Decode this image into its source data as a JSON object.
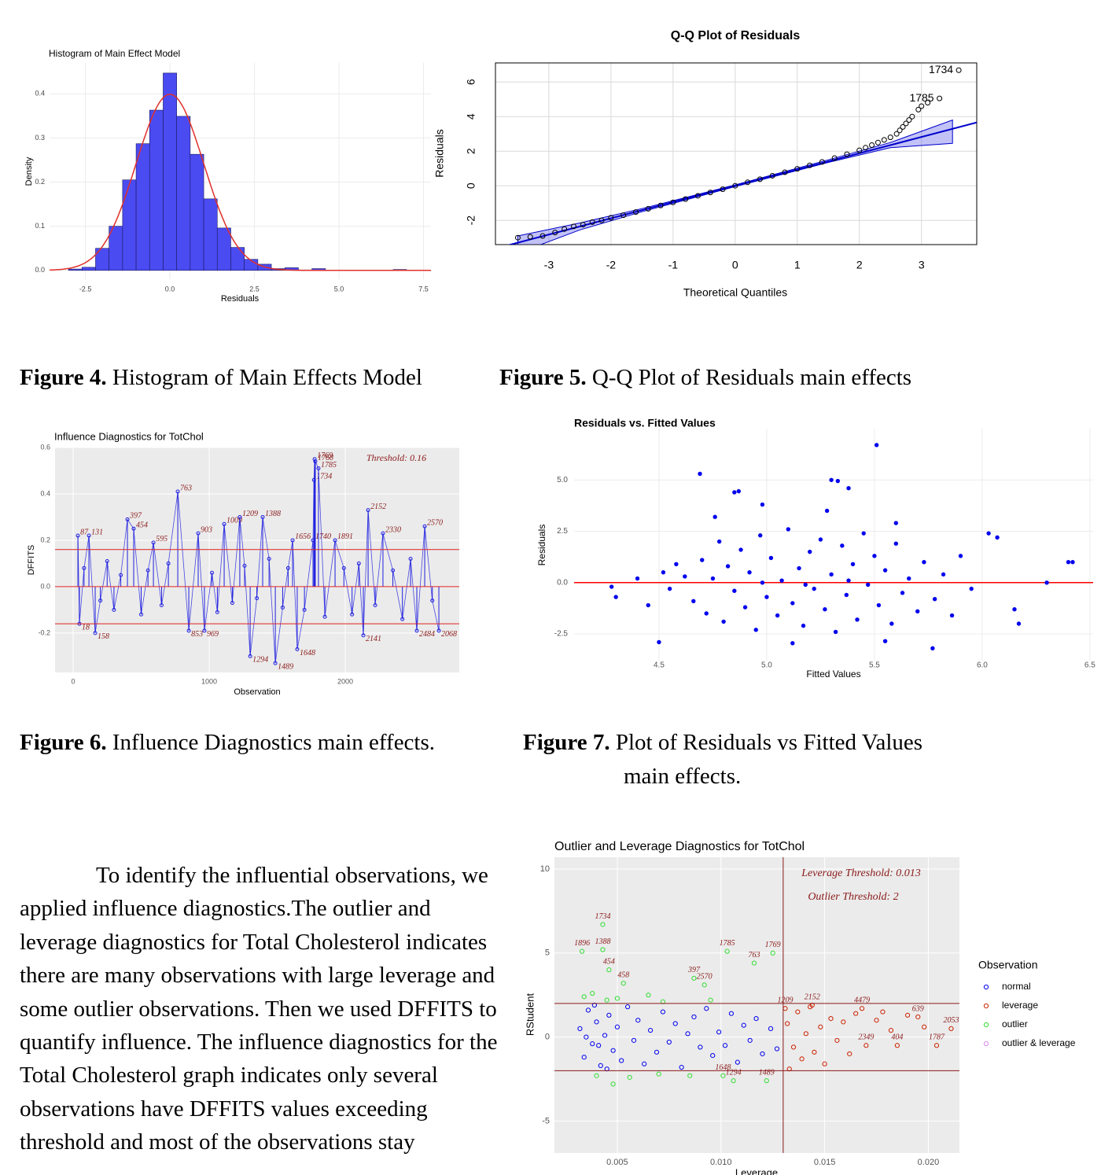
{
  "chart_data": [
    {
      "type": "histogram",
      "title": "Histogram of Main Effect Model",
      "x_label": "Residuals",
      "y_label": "Density",
      "bins": [
        -3.0,
        -2.6,
        -2.2,
        -1.8,
        -1.4,
        -1.0,
        -0.6,
        -0.2,
        0.2,
        0.6,
        1.0,
        1.4,
        1.8,
        2.2,
        2.6,
        3.0,
        3.4,
        3.8,
        4.2,
        4.6,
        5.0,
        5.4,
        5.8,
        6.2,
        6.6,
        7.0,
        7.4
      ],
      "values": [
        0.003,
        0.007,
        0.05,
        0.1,
        0.205,
        0.287,
        0.363,
        0.447,
        0.349,
        0.263,
        0.162,
        0.096,
        0.052,
        0.025,
        0.014,
        0.004,
        0.006,
        0.001,
        0.004,
        0,
        0,
        0,
        0,
        0,
        0.002,
        0
      ],
      "color": "#4b4bf2",
      "normal_curve": {
        "mean": 0,
        "sd": 1,
        "color": "#e0302a"
      },
      "xlim": [
        -3.56,
        7.72
      ],
      "ylim": [
        -0.02,
        0.47
      ],
      "xticks": [
        -2.5,
        {
          "value": 0,
          "label": "0.0"
        },
        2.5,
        {
          "value": 5,
          "label": "5.0"
        },
        7.5
      ],
      "yticks": [
        {
          "value": 0,
          "label": "0.0"
        },
        0.1,
        0.2,
        0.3,
        0.4
      ],
      "grid": true
    },
    {
      "type": "qq",
      "title": "Q-Q Plot of Residuals",
      "x_label": "Theoretical Quantiles",
      "y_label": "Residuals",
      "x": [
        -3.5,
        -3.3,
        -3.1,
        -2.9,
        -2.75,
        -2.6,
        -2.45,
        -2.3,
        -2.15,
        -2.0,
        -1.8,
        -1.6,
        -1.4,
        -1.2,
        -1.0,
        -0.8,
        -0.6,
        -0.4,
        -0.2,
        0,
        0.2,
        0.4,
        0.6,
        0.8,
        1.0,
        1.2,
        1.4,
        1.6,
        1.8,
        2.0,
        2.1,
        2.2,
        2.3,
        2.4,
        2.5,
        2.6,
        2.65,
        2.7,
        2.75,
        2.8,
        2.85,
        2.95,
        3.0,
        3.1
      ],
      "values": [
        -3.0,
        -2.95,
        -2.9,
        -2.7,
        -2.5,
        -2.35,
        -2.25,
        -2.1,
        -2.0,
        -1.85,
        -1.7,
        -1.52,
        -1.33,
        -1.14,
        -0.96,
        -0.77,
        -0.58,
        -0.39,
        -0.2,
        0,
        0.2,
        0.38,
        0.58,
        0.78,
        0.98,
        1.18,
        1.38,
        1.6,
        1.82,
        2.05,
        2.2,
        2.35,
        2.5,
        2.65,
        2.8,
        3.0,
        3.2,
        3.4,
        3.6,
        3.8,
        4.0,
        4.4,
        4.6,
        4.8
      ],
      "labeled_points": [
        {
          "label": "1734",
          "x": 3.6,
          "y": 6.68
        },
        {
          "label": "1785",
          "x": 3.29,
          "y": 5.05
        }
      ],
      "color": "#000000",
      "reference_line": {
        "intercept": 0,
        "slope": 0.94,
        "color": "#0000cc"
      },
      "band": {
        "x": [
          -3.5,
          -2.5,
          -1.5,
          0,
          1.5,
          2.5,
          3.5
        ],
        "lower": [
          -3.9,
          -2.55,
          -1.5,
          -0.05,
          1.35,
          2.2,
          2.45
        ],
        "upper": [
          -2.9,
          -2.15,
          -1.32,
          0.05,
          1.5,
          2.5,
          3.8
        ]
      },
      "xlim": [
        -3.86,
        3.89
      ],
      "ylim": [
        -3.4,
        7.1
      ],
      "xticks": [
        -3,
        -2,
        -1,
        0,
        1,
        2,
        3
      ],
      "yticks": [
        -2,
        0,
        2,
        4,
        6
      ],
      "grid": true
    },
    {
      "type": "lollipop",
      "title": "Influence Diagnostics for TotChol",
      "x_label": "Observation",
      "y_label": "DFFITS",
      "threshold_label": "Threshold: 0.16",
      "threshold": 0.16,
      "x": [
        35,
        46,
        80,
        116,
        162,
        200,
        250,
        300,
        350,
        399,
        445,
        500,
        550,
        590,
        650,
        700,
        769,
        850,
        919,
        965,
        1020,
        1060,
        1110,
        1170,
        1225,
        1260,
        1301,
        1350,
        1393,
        1440,
        1486,
        1540,
        1580,
        1613,
        1647,
        1700,
        1763,
        1770,
        1775,
        1780,
        1803,
        1850,
        1925,
        1990,
        2050,
        2100,
        2133,
        2168,
        2220,
        2277,
        2350,
        2420,
        2480,
        2526,
        2584,
        2640,
        2688
      ],
      "values": [
        0.22,
        -0.16,
        0.08,
        0.22,
        -0.2,
        -0.06,
        0.11,
        -0.1,
        0.05,
        0.29,
        0.25,
        -0.12,
        0.07,
        0.19,
        -0.08,
        0.1,
        0.41,
        -0.19,
        0.23,
        -0.19,
        0.06,
        -0.11,
        0.27,
        -0.07,
        0.3,
        0.09,
        -0.3,
        -0.05,
        0.3,
        0.12,
        -0.33,
        -0.09,
        0.08,
        0.2,
        -0.27,
        -0.1,
        0.2,
        0.46,
        0.55,
        0.54,
        0.51,
        -0.13,
        0.2,
        0.08,
        -0.12,
        0.1,
        -0.21,
        0.33,
        -0.08,
        0.23,
        0.07,
        -0.14,
        0.12,
        -0.19,
        0.26,
        -0.06,
        -0.19
      ],
      "point_labels": [
        "87",
        "18",
        null,
        "131",
        "158",
        null,
        null,
        null,
        null,
        "397",
        "454",
        null,
        null,
        "595",
        null,
        null,
        "763",
        "853",
        "903",
        "969",
        null,
        null,
        "1009",
        null,
        "1209",
        null,
        "1294",
        null,
        "1388",
        null,
        "1489",
        null,
        null,
        "1656",
        "1648",
        null,
        "1740",
        "1734",
        "1769",
        "1768",
        "1785",
        null,
        "1891",
        null,
        null,
        null,
        "2141",
        "2152",
        null,
        "2330",
        null,
        null,
        null,
        "2484",
        "2570",
        null,
        "2068"
      ],
      "color": "#1f1fe0",
      "threshold_color": "#e02020",
      "label_color": "#8b1a1a",
      "xlim": [
        -133,
        2838
      ],
      "ylim": [
        -0.37,
        0.6
      ],
      "xticks": [
        0,
        1000,
        2000
      ],
      "yticks": [
        -0.2,
        {
          "value": 0,
          "label": "0.0"
        },
        0.2,
        0.4,
        0.6
      ],
      "grid": true
    },
    {
      "type": "scatter",
      "title": "Residuals vs. Fitted Values",
      "x_label": "Fitted Values",
      "y_label": "Residuals",
      "x": [
        4.69,
        5.51,
        4.85,
        4.87,
        5.3,
        5.33,
        5.38,
        6.4,
        6.42,
        6.07,
        6.03,
        6.15,
        6.17,
        6.3,
        4.28,
        4.3,
        4.5,
        5.77,
        5.55,
        5.12,
        4.62,
        4.66,
        4.7,
        4.72,
        4.75,
        4.78,
        4.8,
        4.82,
        4.85,
        4.88,
        4.9,
        4.92,
        4.95,
        4.97,
        5.0,
        5.02,
        5.05,
        5.07,
        5.1,
        5.12,
        5.15,
        5.17,
        5.2,
        5.22,
        5.25,
        5.27,
        5.3,
        5.32,
        5.35,
        5.37,
        5.4,
        5.42,
        5.45,
        5.47,
        5.5,
        5.52,
        5.55,
        5.58,
        5.6,
        5.63,
        5.66,
        5.7,
        5.73,
        5.78,
        5.82,
        5.86,
        5.9,
        5.95,
        4.55,
        4.58,
        4.52,
        4.45,
        4.4,
        4.98,
        5.18,
        5.38,
        4.76,
        5.28,
        5.6,
        4.98
      ],
      "values": [
        5.3,
        6.7,
        4.4,
        4.45,
        5.0,
        4.95,
        4.6,
        1.0,
        1.0,
        2.2,
        2.4,
        -1.3,
        -2.0,
        0,
        -0.2,
        -0.7,
        -2.9,
        -3.2,
        -2.85,
        -2.95,
        0.3,
        -0.9,
        1.1,
        -1.5,
        0.2,
        2.0,
        -1.9,
        0.8,
        -0.4,
        1.6,
        -1.2,
        0.5,
        -2.3,
        2.3,
        -0.7,
        1.2,
        -1.6,
        0.1,
        2.6,
        -1.0,
        0.7,
        -2.1,
        1.5,
        -0.3,
        2.1,
        -1.3,
        0.4,
        -2.4,
        1.8,
        -0.6,
        0.9,
        -1.8,
        2.4,
        -0.1,
        1.3,
        -1.1,
        0.6,
        -2.0,
        1.9,
        -0.5,
        0.2,
        -1.4,
        1.0,
        -0.8,
        0.4,
        -1.6,
        1.3,
        -0.3,
        -0.3,
        0.9,
        0.5,
        -1.1,
        0.2,
        0.0,
        -0.1,
        0.1,
        3.2,
        3.5,
        2.9,
        3.8
      ],
      "color": "#0000ee",
      "reference_line": {
        "intercept": 0,
        "slope": 0,
        "color": "#ff0000"
      },
      "xlim": [
        4.106,
        6.515
      ],
      "ylim": [
        -3.8,
        7.5
      ],
      "xticks": [
        4.5,
        {
          "value": 5,
          "label": "5.0"
        },
        5.5,
        {
          "value": 6,
          "label": "6.0"
        },
        6.5
      ],
      "yticks": [
        -2.5,
        {
          "value": 0,
          "label": "0.0"
        },
        2.5,
        {
          "value": 5,
          "label": "5.0"
        }
      ],
      "grid": true
    },
    {
      "type": "scatter",
      "title": "Outlier and Leverage Diagnostics for TotChol",
      "x_label": "Leverage",
      "y_label": "RStudent",
      "annotations": [
        "Leverage Threshold: 0.013",
        "Outlier Threshold: 2"
      ],
      "leverage_threshold": 0.013,
      "outlier_threshold": 2,
      "threshold_color": "#8b1a1a",
      "label_color": "#8b1a1a",
      "marker": "open",
      "legend_title": "Observation",
      "series": [
        {
          "name": "normal",
          "color": "#0000ee",
          "x": [
            0.0032,
            0.0034,
            0.0036,
            0.0038,
            0.004,
            0.0042,
            0.0044,
            0.0046,
            0.0048,
            0.005,
            0.0052,
            0.0055,
            0.0058,
            0.006,
            0.0063,
            0.0066,
            0.0069,
            0.0072,
            0.0075,
            0.0078,
            0.0081,
            0.0084,
            0.0087,
            0.009,
            0.0093,
            0.0096,
            0.0099,
            0.0102,
            0.0105,
            0.0108,
            0.0111,
            0.0114,
            0.0117,
            0.012,
            0.0124,
            0.0127,
            0.0035,
            0.0041,
            0.0039,
            0.0045
          ],
          "values": [
            0.5,
            -1.2,
            1.6,
            -0.4,
            0.9,
            -1.7,
            0.1,
            1.3,
            -0.8,
            0.6,
            -1.4,
            1.8,
            -0.2,
            1.0,
            -1.6,
            0.4,
            -0.9,
            1.5,
            -0.3,
            0.8,
            -1.8,
            0.2,
            1.2,
            -0.6,
            1.7,
            -1.1,
            0.3,
            -0.5,
            1.4,
            -1.5,
            0.7,
            -0.2,
            1.1,
            -1.0,
            0.5,
            -0.7,
            0.0,
            -0.5,
            1.9,
            -1.9
          ]
        },
        {
          "name": "leverage",
          "color": "#cc2200",
          "x": [
            0.0132,
            0.0135,
            0.0137,
            0.0139,
            0.0141,
            0.0143,
            0.0145,
            0.0148,
            0.015,
            0.0153,
            0.0156,
            0.0159,
            0.0162,
            0.0165,
            0.0168,
            0.017,
            0.0175,
            0.0178,
            0.0182,
            0.0185,
            0.019,
            0.0195,
            0.0198,
            0.0204,
            0.0211,
            0.0133,
            0.0144,
            0.0131
          ],
          "values": [
            0.8,
            -0.6,
            1.5,
            -1.3,
            0.2,
            1.8,
            -0.9,
            0.6,
            -1.6,
            1.1,
            -0.2,
            0.9,
            -1.0,
            1.4,
            1.7,
            -0.5,
            1.0,
            1.5,
            0.4,
            -0.5,
            1.3,
            1.2,
            0.6,
            -0.5,
            0.5,
            -1.9,
            1.9,
            1.7
          ],
          "point_labels": [
            null,
            null,
            null,
            null,
            null,
            null,
            null,
            null,
            null,
            null,
            null,
            null,
            null,
            null,
            "4479",
            "2349",
            null,
            null,
            null,
            "404",
            null,
            "639",
            null,
            "1787",
            "2053",
            null,
            "2152",
            "1209"
          ]
        },
        {
          "name": "outlier",
          "color": "#33dd33",
          "x": [
            0.0043,
            0.0103,
            0.0125,
            0.0116,
            0.0043,
            0.0033,
            0.0046,
            0.0053,
            0.0087,
            0.0092,
            0.0034,
            0.0038,
            0.0045,
            0.005,
            0.0065,
            0.0072,
            0.0095,
            0.0106,
            0.0122,
            0.0101,
            0.004,
            0.0048,
            0.0056,
            0.007,
            0.0085
          ],
          "values": [
            6.7,
            5.1,
            5.0,
            4.4,
            5.2,
            5.1,
            4.0,
            3.2,
            3.5,
            3.1,
            2.4,
            2.6,
            2.2,
            2.3,
            2.5,
            2.1,
            2.2,
            -2.6,
            -2.6,
            -2.3,
            -2.3,
            -2.8,
            -2.4,
            -2.2,
            -2.3
          ],
          "point_labels": [
            "1734",
            "1785",
            "1769",
            "763",
            "1388",
            "1896",
            "454",
            "458",
            "397",
            "2570",
            null,
            null,
            null,
            null,
            null,
            null,
            null,
            "1294",
            "1489",
            "1648",
            null,
            null,
            null,
            null,
            null
          ]
        },
        {
          "name": "outlier & leverage",
          "color": "#dd88ee",
          "x": [],
          "values": []
        }
      ],
      "xlim": [
        0.00197,
        0.0215
      ],
      "ylim": [
        -6.9,
        10.7
      ],
      "xticks": [
        0.005,
        {
          "value": 0.01,
          "label": "0.010"
        },
        0.015,
        {
          "value": 0.02,
          "label": "0.020"
        }
      ],
      "yticks": [
        -5,
        0,
        5,
        10
      ],
      "grid": true
    }
  ],
  "captions": [
    {
      "label": "Figure 4.",
      "text": "Histogram of Main Effects Model"
    },
    {
      "label": "Figure 5.",
      "text": "Q-Q Plot of Residuals main effects"
    },
    {
      "label": "Figure 6.",
      "text": "Influence Diagnostics main effects."
    },
    {
      "label": "Figure 7.",
      "text": "Plot of Residuals vs Fitted Values main effects."
    }
  ],
  "body_text": "To identify the influential observations, we applied influence diagnostics.The outlier and leverage diagnostics for Total Cholesterol indicates there are many observations with large leverage and some outlier observations. Then we used DFFITS to quantify influence. The influence diagnostics for the Total Cholesterol graph indicates only several observations have DFFITS values exceeding threshold and most of the observations stay"
}
